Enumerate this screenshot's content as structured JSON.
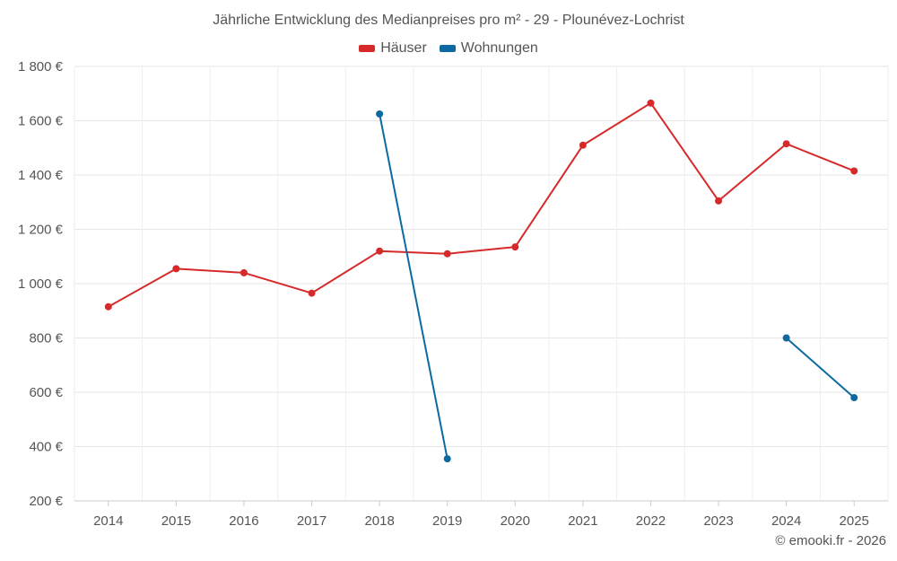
{
  "chart_data": {
    "type": "line",
    "title": "Jährliche Entwicklung des Medianpreises pro m² - 29 - Plounévez-Lochrist",
    "categories": [
      "2014",
      "2015",
      "2016",
      "2017",
      "2018",
      "2019",
      "2020",
      "2021",
      "2022",
      "2023",
      "2024",
      "2025"
    ],
    "series": [
      {
        "name": "Häuser",
        "color": "#d62a2a",
        "values": [
          915,
          1055,
          1040,
          965,
          1120,
          1110,
          1135,
          1510,
          1665,
          1305,
          1515,
          1415
        ]
      },
      {
        "name": "Wohnungen",
        "color": "#0d6aa0",
        "values": [
          null,
          null,
          null,
          null,
          1625,
          355,
          null,
          null,
          null,
          null,
          800,
          580
        ]
      }
    ],
    "y_ticks": [
      200,
      400,
      600,
      800,
      1000,
      1200,
      1400,
      1600,
      1800
    ],
    "y_tick_labels": [
      "200 €",
      "400 €",
      "600 €",
      "800 €",
      "1 000 €",
      "1 200 €",
      "1 400 €",
      "1 600 €",
      "1 800 €"
    ],
    "ylim": [
      200,
      1800
    ],
    "grid": true,
    "legend_position": "top-center"
  },
  "credit": "© emooki.fr - 2026"
}
